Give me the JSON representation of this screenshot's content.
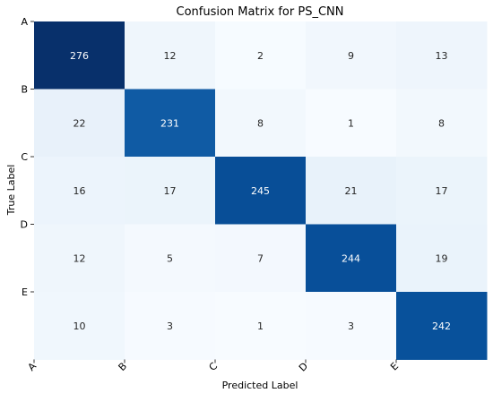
{
  "chart_data": {
    "type": "heatmap",
    "title": "Confusion Matrix for PS_CNN",
    "xlabel": "Predicted Label",
    "ylabel": "True Label",
    "x_categories": [
      "A",
      "B",
      "C",
      "D",
      "E"
    ],
    "y_categories": [
      "A",
      "B",
      "C",
      "D",
      "E"
    ],
    "values": [
      [
        276,
        12,
        2,
        9,
        13
      ],
      [
        22,
        231,
        8,
        1,
        8
      ],
      [
        16,
        17,
        245,
        21,
        17
      ],
      [
        12,
        5,
        7,
        244,
        19
      ],
      [
        10,
        3,
        1,
        3,
        242
      ]
    ],
    "colormap": "Blues",
    "vmin": 1,
    "vmax": 276,
    "colors": {
      "low": "#f7fbff",
      "high": "#08306b",
      "text_dark": "#262626",
      "text_light": "#ffffff"
    },
    "colorbar": false,
    "grid": false
  }
}
